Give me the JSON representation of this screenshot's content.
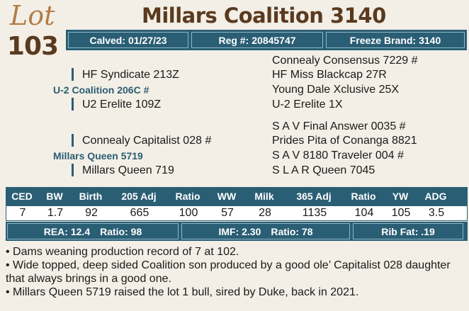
{
  "lot": {
    "word": "Lot",
    "number": "103"
  },
  "title": "Millars Coalition 3140",
  "info": {
    "calved_label": "Calved:",
    "calved_value": "01/27/23",
    "reg_label": "Reg #:",
    "reg_value": "20845747",
    "freeze_label": "Freeze Brand:",
    "freeze_value": "3140"
  },
  "pedigree": {
    "sire": "U-2 Coalition 206C #",
    "sire_sire": "HF Syndicate 213Z",
    "sire_dam": "U2 Erelite 109Z",
    "ss_sire": "Connealy Consensus 7229 #",
    "ss_dam": "HF Miss Blackcap 27R",
    "sd_sire": "Young Dale Xclusive 25X",
    "sd_dam": "U-2 Erelite 1X",
    "dam": "Millars Queen 5719",
    "dam_sire": "Connealy Capitalist 028 #",
    "dam_dam": "Millars Queen 719",
    "ds_sire": "S A V Final Answer 0035 #",
    "ds_dam": "Prides Pita of Conanga 8821",
    "dd_sire": "S A V 8180 Traveler 004 #",
    "dd_dam": "S L A R Queen 7045"
  },
  "epd": {
    "headers": [
      "CED",
      "BW",
      "Birth",
      "205 Adj",
      "Ratio",
      "WW",
      "Milk",
      "365 Adj",
      "Ratio",
      "YW",
      "ADG"
    ],
    "values": [
      "7",
      "1.7",
      "92",
      "665",
      "100",
      "57",
      "28",
      "1135",
      "104",
      "105",
      "3.5"
    ]
  },
  "ultrasound": {
    "rea_label": "REA:",
    "rea_value": "12.4",
    "rea_ratio_label": "Ratio:",
    "rea_ratio_value": "98",
    "imf_label": "IMF:",
    "imf_value": "2.30",
    "imf_ratio_label": "Ratio:",
    "imf_ratio_value": "78",
    "ribfat_label": "Rib Fat:",
    "ribfat_value": ".19"
  },
  "notes": [
    "• Dams weaning production record of 7 at 102.",
    "• Wide topped, deep sided Coalition son produced by a good ole’ Capitalist 028 daughter that always brings in a good one.",
    "• Millars Queen 5719 raised the lot 1 bull, sired by Duke, back in 2021."
  ],
  "colors": {
    "bar": "#2a5e74",
    "title": "#5a3a1f",
    "lot_word": "#b07d4a",
    "background": "#f3efe6"
  }
}
